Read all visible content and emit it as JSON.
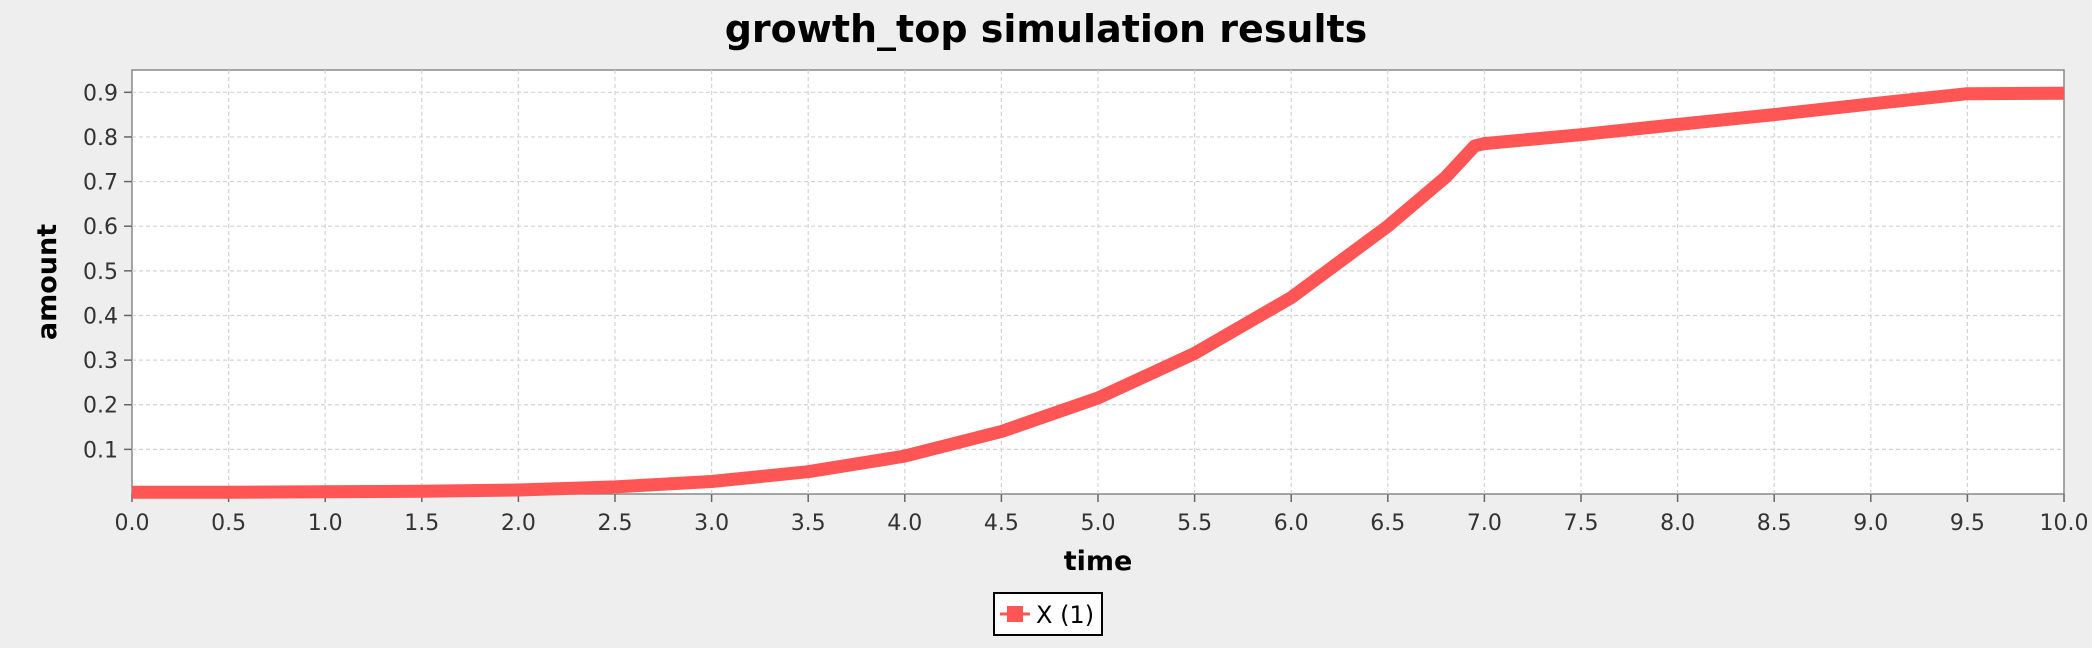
{
  "chart_data": {
    "type": "line",
    "title": "growth_top simulation results",
    "xlabel": "time",
    "ylabel": "amount",
    "xlim": [
      0,
      10
    ],
    "ylim": [
      0,
      0.95
    ],
    "x_ticks": [
      0.0,
      0.5,
      1.0,
      1.5,
      2.0,
      2.5,
      3.0,
      3.5,
      4.0,
      4.5,
      5.0,
      5.5,
      6.0,
      6.5,
      7.0,
      7.5,
      8.0,
      8.5,
      9.0,
      9.5,
      10.0
    ],
    "x_tick_labels": [
      "0.0",
      "0.5",
      "1.0",
      "1.5",
      "2.0",
      "2.5",
      "3.0",
      "3.5",
      "4.0",
      "4.5",
      "5.0",
      "5.5",
      "6.0",
      "6.5",
      "7.0",
      "7.5",
      "8.0",
      "8.5",
      "9.0",
      "9.5",
      "10.0"
    ],
    "y_ticks": [
      0.1,
      0.2,
      0.3,
      0.4,
      0.5,
      0.6,
      0.7,
      0.8,
      0.9
    ],
    "y_tick_labels": [
      "0.1",
      "0.2",
      "0.3",
      "0.4",
      "0.5",
      "0.6",
      "0.7",
      "0.8",
      "0.9"
    ],
    "grid": true,
    "legend_position": "bottom-center",
    "series": [
      {
        "name": "X (1)",
        "color": "#ff5555",
        "x": [
          0.0,
          0.5,
          1.0,
          1.5,
          2.0,
          2.5,
          3.0,
          3.5,
          4.0,
          4.5,
          5.0,
          5.5,
          6.0,
          6.5,
          6.8,
          6.95,
          7.0,
          7.5,
          8.0,
          8.5,
          9.0,
          9.5,
          10.0
        ],
        "y": [
          0.004,
          0.004,
          0.005,
          0.006,
          0.009,
          0.016,
          0.028,
          0.05,
          0.085,
          0.14,
          0.215,
          0.315,
          0.44,
          0.6,
          0.71,
          0.78,
          0.785,
          0.805,
          0.828,
          0.85,
          0.874,
          0.897,
          0.898
        ]
      }
    ]
  }
}
